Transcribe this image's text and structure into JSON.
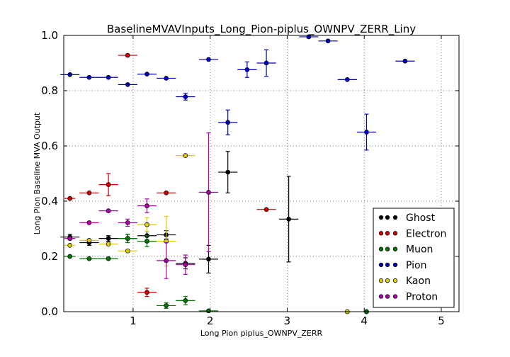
{
  "chart_data": {
    "type": "scatter",
    "title": "BaselineMVAVInputs_Long_Pion-piplus_OWNPV_ZERR_Liny",
    "xlabel": "Long Pion piplus_OWNPV_ZERR",
    "ylabel": "Long Pion Baseline MVA Output",
    "xlim": [
      0.1,
      5.23
    ],
    "ylim": [
      0.0,
      1.0
    ],
    "xticks": [
      "1",
      "2",
      "3",
      "4",
      "5"
    ],
    "yticks": [
      "0.0",
      "0.2",
      "0.4",
      "0.6",
      "0.8",
      "1.0"
    ],
    "grid": true,
    "legend_position": "lower-right",
    "series": [
      {
        "name": "Ghost",
        "color": "#000000",
        "points": [
          {
            "x": 0.18,
            "y": 0.27,
            "xerr": 0.125,
            "yerr": 0.01
          },
          {
            "x": 0.43,
            "y": 0.25,
            "xerr": 0.125,
            "yerr": 0.01
          },
          {
            "x": 0.68,
            "y": 0.265,
            "xerr": 0.125,
            "yerr": 0.01
          },
          {
            "x": 0.93,
            "y": 0.265,
            "xerr": 0.125,
            "yerr": 0.015
          },
          {
            "x": 1.18,
            "y": 0.275,
            "xerr": 0.125,
            "yerr": 0.015
          },
          {
            "x": 1.43,
            "y": 0.278,
            "xerr": 0.125,
            "yerr": 0.015
          },
          {
            "x": 1.68,
            "y": 0.175,
            "xerr": 0.125,
            "yerr": 0.02
          },
          {
            "x": 1.98,
            "y": 0.19,
            "xerr": 0.125,
            "yerr": 0.05
          },
          {
            "x": 2.23,
            "y": 0.505,
            "xerr": 0.125,
            "yerr": 0.075
          },
          {
            "x": 3.02,
            "y": 0.335,
            "xerr": 0.125,
            "yerr": 0.155
          },
          {
            "x": 4.03,
            "y": 0.0,
            "xerr": 0.0,
            "yerr": 0.0
          }
        ]
      },
      {
        "name": "Electron",
        "color": "#cc0000",
        "points": [
          {
            "x": 0.18,
            "y": 0.41,
            "xerr": 0.07,
            "yerr": 0.0
          },
          {
            "x": 0.43,
            "y": 0.43,
            "xerr": 0.125,
            "yerr": 0.0
          },
          {
            "x": 0.68,
            "y": 0.46,
            "xerr": 0.125,
            "yerr": 0.04
          },
          {
            "x": 0.93,
            "y": 0.928,
            "xerr": 0.125,
            "yerr": 0.0
          },
          {
            "x": 1.18,
            "y": 0.07,
            "xerr": 0.125,
            "yerr": 0.015
          },
          {
            "x": 1.43,
            "y": 0.43,
            "xerr": 0.125,
            "yerr": 0.0
          },
          {
            "x": 2.73,
            "y": 0.37,
            "xerr": 0.125,
            "yerr": 0.0
          }
        ]
      },
      {
        "name": "Muon",
        "color": "#007700",
        "points": [
          {
            "x": 0.18,
            "y": 0.2,
            "xerr": 0.07,
            "yerr": 0.0
          },
          {
            "x": 0.43,
            "y": 0.192,
            "xerr": 0.125,
            "yerr": 0.0
          },
          {
            "x": 0.68,
            "y": 0.192,
            "xerr": 0.125,
            "yerr": 0.0
          },
          {
            "x": 0.93,
            "y": 0.265,
            "xerr": 0.125,
            "yerr": 0.015
          },
          {
            "x": 1.18,
            "y": 0.255,
            "xerr": 0.125,
            "yerr": 0.02
          },
          {
            "x": 1.43,
            "y": 0.022,
            "xerr": 0.125,
            "yerr": 0.01
          },
          {
            "x": 1.68,
            "y": 0.04,
            "xerr": 0.125,
            "yerr": 0.015
          },
          {
            "x": 1.98,
            "y": 0.003,
            "xerr": 0.125,
            "yerr": 0.0
          },
          {
            "x": 4.03,
            "y": 0.0,
            "xerr": 0.0,
            "yerr": 0.0
          }
        ]
      },
      {
        "name": "Pion",
        "color": "#0000bb",
        "points": [
          {
            "x": 0.18,
            "y": 0.858,
            "xerr": 0.125,
            "yerr": 0.0
          },
          {
            "x": 0.43,
            "y": 0.848,
            "xerr": 0.125,
            "yerr": 0.0
          },
          {
            "x": 0.68,
            "y": 0.848,
            "xerr": 0.125,
            "yerr": 0.0
          },
          {
            "x": 0.93,
            "y": 0.822,
            "xerr": 0.125,
            "yerr": 0.0
          },
          {
            "x": 1.18,
            "y": 0.86,
            "xerr": 0.125,
            "yerr": 0.0
          },
          {
            "x": 1.43,
            "y": 0.845,
            "xerr": 0.125,
            "yerr": 0.0
          },
          {
            "x": 1.68,
            "y": 0.778,
            "xerr": 0.125,
            "yerr": 0.012
          },
          {
            "x": 1.98,
            "y": 0.913,
            "xerr": 0.125,
            "yerr": 0.0
          },
          {
            "x": 2.23,
            "y": 0.685,
            "xerr": 0.125,
            "yerr": 0.045
          },
          {
            "x": 2.48,
            "y": 0.876,
            "xerr": 0.125,
            "yerr": 0.028
          },
          {
            "x": 2.73,
            "y": 0.9,
            "xerr": 0.125,
            "yerr": 0.048
          },
          {
            "x": 3.28,
            "y": 0.995,
            "xerr": 0.125,
            "yerr": 0.0
          },
          {
            "x": 3.53,
            "y": 0.98,
            "xerr": 0.125,
            "yerr": 0.0
          },
          {
            "x": 3.78,
            "y": 0.84,
            "xerr": 0.125,
            "yerr": 0.0
          },
          {
            "x": 4.03,
            "y": 0.65,
            "xerr": 0.125,
            "yerr": 0.065
          },
          {
            "x": 4.53,
            "y": 0.907,
            "xerr": 0.125,
            "yerr": 0.0
          }
        ]
      },
      {
        "name": "Kaon",
        "color": "#ddcc00",
        "points": [
          {
            "x": 0.18,
            "y": 0.24,
            "xerr": 0.07,
            "yerr": 0.0
          },
          {
            "x": 0.43,
            "y": 0.258,
            "xerr": 0.125,
            "yerr": 0.0
          },
          {
            "x": 0.68,
            "y": 0.245,
            "xerr": 0.125,
            "yerr": 0.0
          },
          {
            "x": 0.93,
            "y": 0.22,
            "xerr": 0.125,
            "yerr": 0.0
          },
          {
            "x": 1.18,
            "y": 0.315,
            "xerr": 0.125,
            "yerr": 0.025
          },
          {
            "x": 1.43,
            "y": 0.255,
            "xerr": 0.125,
            "yerr": 0.09
          },
          {
            "x": 1.68,
            "y": 0.565,
            "xerr": 0.125,
            "yerr": 0.0
          },
          {
            "x": 3.78,
            "y": 0.0,
            "xerr": 0.0,
            "yerr": 0.0
          }
        ]
      },
      {
        "name": "Proton",
        "color": "#aa00aa",
        "points": [
          {
            "x": 0.18,
            "y": 0.265,
            "xerr": 0.07,
            "yerr": 0.0
          },
          {
            "x": 0.43,
            "y": 0.322,
            "xerr": 0.125,
            "yerr": 0.0
          },
          {
            "x": 0.68,
            "y": 0.365,
            "xerr": 0.125,
            "yerr": 0.0
          },
          {
            "x": 0.93,
            "y": 0.322,
            "xerr": 0.125,
            "yerr": 0.013
          },
          {
            "x": 1.18,
            "y": 0.383,
            "xerr": 0.125,
            "yerr": 0.025
          },
          {
            "x": 1.43,
            "y": 0.185,
            "xerr": 0.125,
            "yerr": 0.065
          },
          {
            "x": 1.68,
            "y": 0.17,
            "xerr": 0.125,
            "yerr": 0.035
          },
          {
            "x": 1.98,
            "y": 0.432,
            "xerr": 0.125,
            "yerr": 0.215
          }
        ]
      }
    ]
  }
}
